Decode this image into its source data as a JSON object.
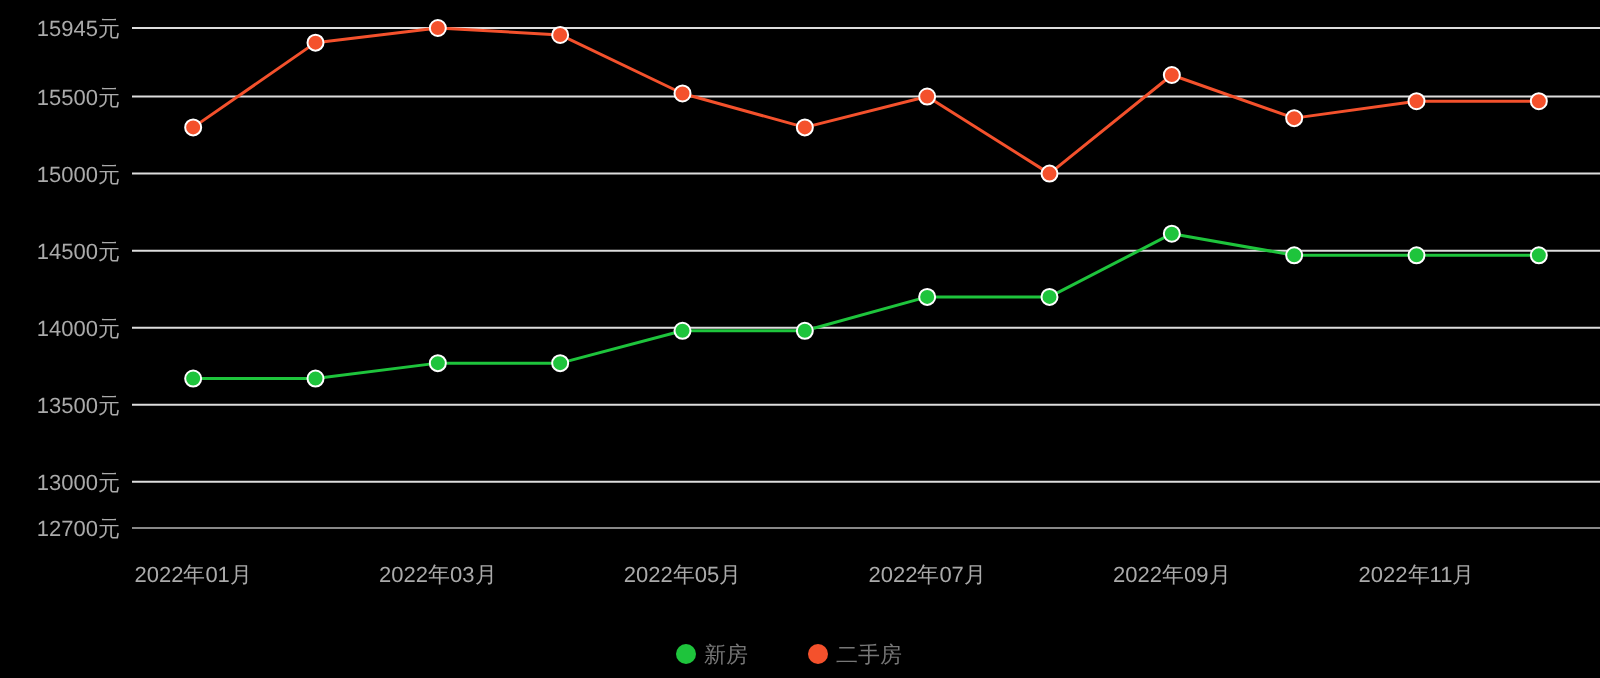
{
  "chart_data": {
    "type": "line",
    "categories": [
      "2022年01月",
      null,
      "2022年03月",
      null,
      "2022年05月",
      null,
      "2022年07月",
      null,
      "2022年09月",
      null,
      "2022年11月",
      null
    ],
    "series": [
      {
        "name": "新房",
        "color": "#1ec43c",
        "values": [
          13670,
          13670,
          13770,
          13770,
          13980,
          13980,
          14200,
          14200,
          14610,
          14470,
          14470,
          14470
        ]
      },
      {
        "name": "二手房",
        "color": "#f4512c",
        "values": [
          15300,
          15850,
          15945,
          15900,
          15520,
          15300,
          15500,
          15000,
          15640,
          15360,
          15470,
          15470
        ]
      }
    ],
    "ylim": [
      12700,
      15945
    ],
    "yticks": [
      {
        "value": 12700,
        "label": "12700元"
      },
      {
        "value": 13000,
        "label": "13000元"
      },
      {
        "value": 13500,
        "label": "13500元"
      },
      {
        "value": 14000,
        "label": "14000元"
      },
      {
        "value": 14500,
        "label": "14500元"
      },
      {
        "value": 15000,
        "label": "15000元"
      },
      {
        "value": 15500,
        "label": "15500元"
      },
      {
        "value": 15945,
        "label": "15945元"
      }
    ],
    "grid": "y",
    "legend": "bottom",
    "marker": "circle"
  }
}
